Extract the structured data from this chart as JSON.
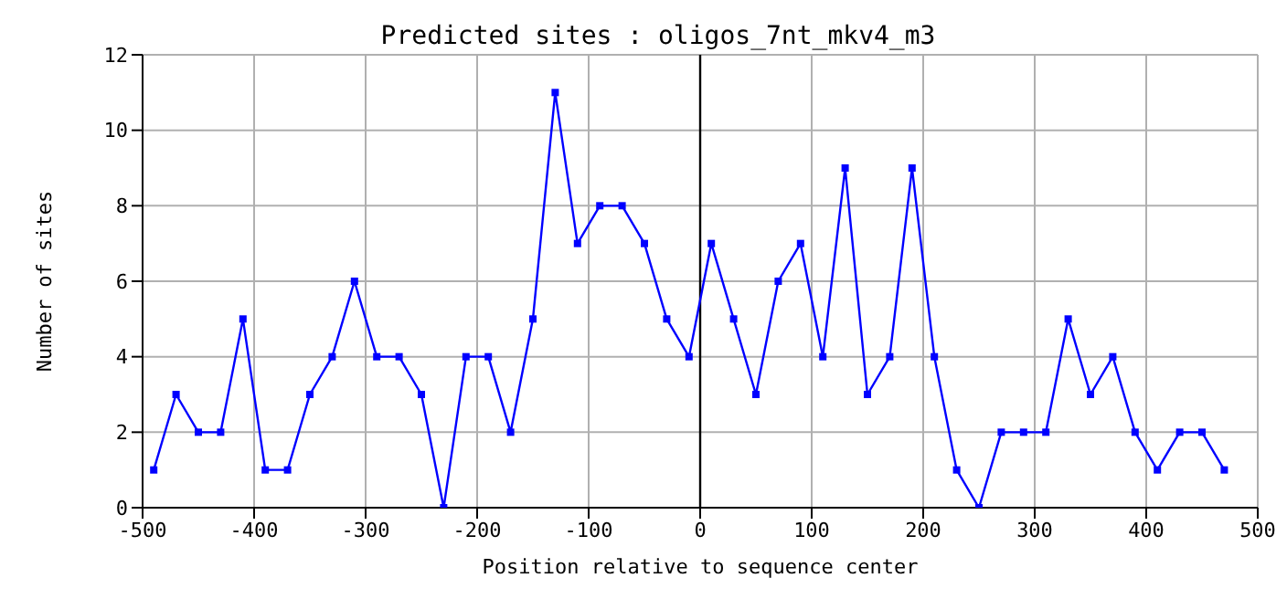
{
  "chart_data": {
    "type": "line",
    "title": "Predicted sites : oligos_7nt_mkv4_m3",
    "xlabel": "Position relative to sequence center",
    "ylabel": "Number of sites",
    "x": [
      -490,
      -470,
      -450,
      -430,
      -410,
      -390,
      -370,
      -350,
      -330,
      -310,
      -290,
      -270,
      -250,
      -230,
      -210,
      -190,
      -170,
      -150,
      -130,
      -110,
      -90,
      -70,
      -50,
      -30,
      -10,
      10,
      30,
      50,
      70,
      90,
      110,
      130,
      150,
      170,
      190,
      210,
      230,
      250,
      270,
      290,
      310,
      330,
      350,
      370,
      390,
      410,
      430,
      450,
      470
    ],
    "series": [
      {
        "color": "#0000ff",
        "values": [
          1,
          3,
          2,
          2,
          5,
          1,
          1,
          3,
          4,
          6,
          4,
          4,
          3,
          0,
          4,
          4,
          2,
          5,
          11,
          7,
          8,
          8,
          7,
          5,
          4,
          7,
          5,
          3,
          6,
          7,
          4,
          9,
          3,
          4,
          9,
          4,
          1,
          0,
          2,
          2,
          2,
          5,
          3,
          4,
          2,
          1,
          2,
          2,
          1
        ]
      }
    ],
    "xlim": [
      -500,
      500
    ],
    "xticks": [
      -500,
      -400,
      -300,
      -200,
      -100,
      0,
      100,
      200,
      300,
      400,
      500
    ],
    "ylim": [
      0,
      12
    ],
    "yticks": [
      0,
      2,
      4,
      6,
      8,
      10,
      12
    ],
    "ref_lines": [
      {
        "axis": "x",
        "value": 0,
        "color": "#000000"
      }
    ],
    "grid": true,
    "marker": "square",
    "line_style": "solid"
  }
}
